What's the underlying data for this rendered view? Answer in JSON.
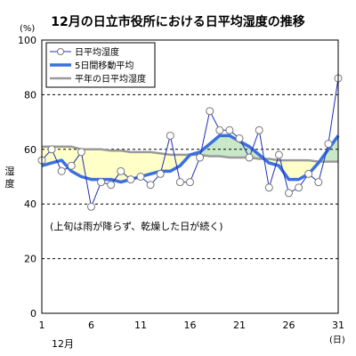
{
  "chart_data": {
    "type": "line",
    "title": "12月の日立市役所における日平均湿度の推移",
    "ylabel": "湿度",
    "yunit": "(%)",
    "xunit": "(日)",
    "month_label": "12月",
    "ylim": [
      0,
      100
    ],
    "yticks": [
      0,
      20,
      40,
      60,
      80,
      100
    ],
    "xlim": [
      1,
      31
    ],
    "xticks": [
      1,
      6,
      11,
      16,
      21,
      26,
      31
    ],
    "grid": "horizontal dashed",
    "legend": "top-left",
    "annotation": "(上旬は雨が降らず、乾燥した日が続く)",
    "x": [
      1,
      2,
      3,
      4,
      5,
      6,
      7,
      8,
      9,
      10,
      11,
      12,
      13,
      14,
      15,
      16,
      17,
      18,
      19,
      20,
      21,
      22,
      23,
      24,
      25,
      26,
      27,
      28,
      29,
      30,
      31
    ],
    "series": [
      {
        "name": "日平均湿度",
        "color": "#1f2fb5",
        "marker": "circle-open",
        "values": [
          56,
          60,
          52,
          54,
          59,
          39,
          48,
          47,
          52,
          49,
          50,
          47,
          51,
          65,
          48,
          48,
          57,
          74,
          67,
          67,
          64,
          57,
          67,
          46,
          58,
          44,
          46,
          51,
          48,
          62,
          86
        ]
      },
      {
        "name": "5日間移動平均",
        "color": "#3b6fe0",
        "values": [
          54,
          55,
          56,
          52,
          50,
          49,
          49,
          49,
          48,
          49,
          50,
          51,
          52,
          52,
          54,
          58,
          59,
          62,
          65,
          65,
          63,
          61,
          58,
          55,
          54,
          49,
          49,
          51,
          55,
          60,
          65
        ]
      },
      {
        "name": "平年の日平均湿度",
        "color": "#9a9a9a",
        "values": [
          61,
          61,
          61,
          61,
          60,
          60,
          60,
          59.5,
          59.5,
          59,
          59,
          59,
          58.5,
          58,
          58,
          58,
          58,
          57.5,
          57.5,
          57,
          57,
          57,
          56.5,
          56.5,
          56,
          56,
          56,
          56,
          55.5,
          55.5,
          55.5
        ]
      }
    ],
    "fill_below_normal_color": "#ffffc8",
    "fill_above_normal_color": "#c8e8c8"
  }
}
